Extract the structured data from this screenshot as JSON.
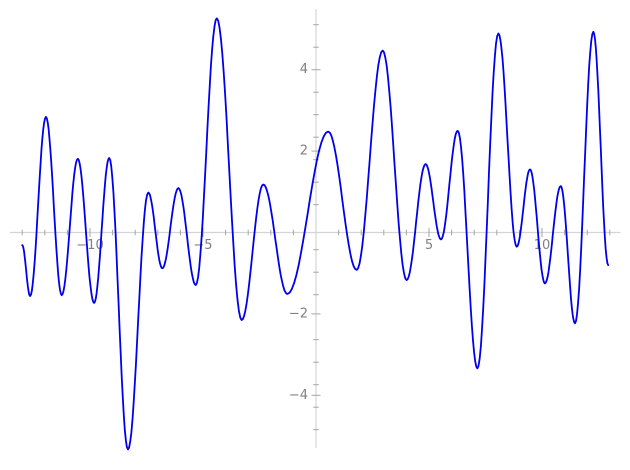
{
  "chart_data": {
    "type": "line",
    "title": "",
    "xlabel": "",
    "ylabel": "",
    "grid": false,
    "legend": null,
    "axes_style": "centered-origin",
    "xlim": [
      -13,
      13
    ],
    "ylim": [
      -5.5,
      5.5
    ],
    "x_major_ticks": [
      {
        "value": -10,
        "label": "−10"
      },
      {
        "value": -5,
        "label": "−5"
      },
      {
        "value": 5,
        "label": "5"
      },
      {
        "value": 10,
        "label": "10"
      }
    ],
    "y_major_ticks": [
      {
        "value": 4,
        "label": "4"
      },
      {
        "value": 2,
        "label": "2"
      },
      {
        "value": -2,
        "label": "−2"
      },
      {
        "value": -4,
        "label": "−4"
      }
    ],
    "x_minor_tick_step": 1,
    "series": [
      {
        "name": "blue-oscillating-curve",
        "color": "#0000ee",
        "line_width": 1.8,
        "interpolation": "smooth-extrema",
        "points": [
          [
            -13.0,
            -0.31
          ],
          [
            -12.65,
            -1.56
          ],
          [
            -11.95,
            2.84
          ],
          [
            -11.25,
            -1.54
          ],
          [
            -10.54,
            1.81
          ],
          [
            -9.82,
            -1.73
          ],
          [
            -9.15,
            1.83
          ],
          [
            -8.32,
            -5.33
          ],
          [
            -7.42,
            0.98
          ],
          [
            -6.8,
            -0.88
          ],
          [
            -6.09,
            1.09
          ],
          [
            -5.32,
            -1.29
          ],
          [
            -4.39,
            5.26
          ],
          [
            -3.29,
            -2.15
          ],
          [
            -2.33,
            1.18
          ],
          [
            -1.27,
            -1.51
          ],
          [
            0.54,
            2.48
          ],
          [
            1.8,
            -0.92
          ],
          [
            2.95,
            4.47
          ],
          [
            4.01,
            -1.17
          ],
          [
            4.85,
            1.68
          ],
          [
            5.53,
            -0.17
          ],
          [
            6.27,
            2.5
          ],
          [
            7.14,
            -3.34
          ],
          [
            8.07,
            4.89
          ],
          [
            8.88,
            -0.35
          ],
          [
            9.47,
            1.55
          ],
          [
            10.13,
            -1.25
          ],
          [
            10.83,
            1.14
          ],
          [
            11.46,
            -2.23
          ],
          [
            12.27,
            4.93
          ],
          [
            12.93,
            -0.8
          ]
        ]
      }
    ]
  },
  "colors": {
    "background": "#ffffff",
    "axis_line": "#d4d4d4",
    "tick": "#a6a6a6",
    "tick_label": "#808080",
    "curve": "#0000ee"
  }
}
